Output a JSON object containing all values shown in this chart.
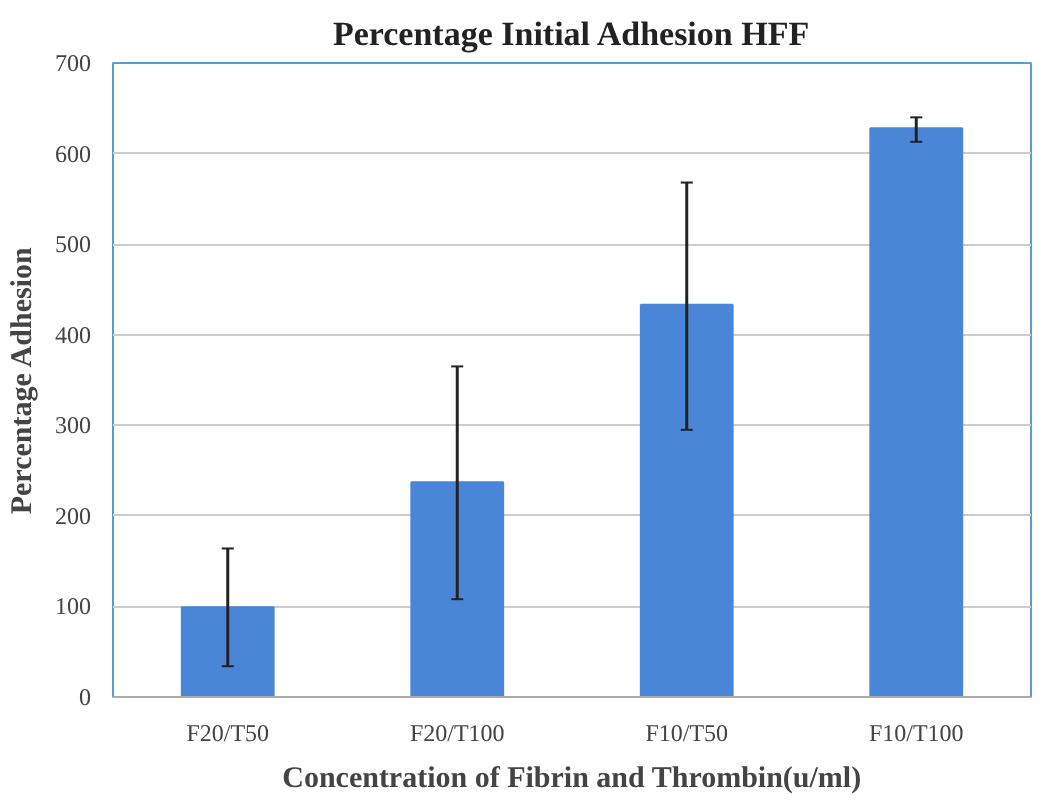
{
  "chart_data": {
    "type": "bar",
    "title": "Percentage Initial Adhesion HFF",
    "xlabel": "Concentration of Fibrin and Thrombin(u/ml)",
    "ylabel": "Percentage Adhesion",
    "categories": [
      "F20/T50",
      "F20/T100",
      "F10/T50",
      "F10/T100"
    ],
    "values": [
      99,
      237,
      433,
      628
    ],
    "errors": [
      [
        34,
        164
      ],
      [
        108,
        365
      ],
      [
        295,
        568
      ],
      [
        613,
        640
      ]
    ],
    "color": "#4a86d8",
    "ylim": [
      0,
      700
    ],
    "yticks": [
      0,
      100,
      200,
      300,
      400,
      500,
      600,
      700
    ],
    "grid": "y"
  }
}
